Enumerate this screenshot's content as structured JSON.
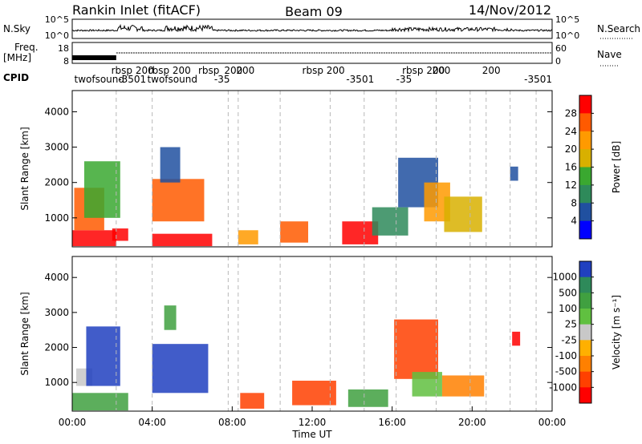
{
  "header": {
    "station": "Rankin Inlet (fitACF)",
    "beam": "Beam 09",
    "date": "14/Nov/2012"
  },
  "strip_labels": {
    "nsky": "N.Sky",
    "nsky_ticks": [
      "10^5",
      "10^0"
    ],
    "nsearch": "N.Search",
    "nsearch_ticks": [
      "10^5",
      "10^0"
    ],
    "freq_line1": "Freq.",
    "freq_line2": "[MHz]",
    "freq_ticks": [
      "18",
      "8"
    ],
    "nave": "Nave",
    "nave_ticks": [
      "60",
      "0"
    ],
    "cpid": "CPID"
  },
  "cpid_labels": [
    {
      "text": "twofsound",
      "t": 0.1,
      "row": 2
    },
    {
      "text": "rbsp 200",
      "t": 1.95,
      "row": 1
    },
    {
      "text": "-3501",
      "t": 2.3,
      "row": 2
    },
    {
      "text": "rbsp 200",
      "t": 3.8,
      "row": 1
    },
    {
      "text": "twofsound",
      "t": 3.75,
      "row": 2
    },
    {
      "text": "-35",
      "t": 7.1,
      "row": 2
    },
    {
      "text": "rbsp",
      "t": 6.3,
      "row": 1
    },
    {
      "text": "200",
      "t": 7.6,
      "row": 1
    },
    {
      "text": "200",
      "t": 8.2,
      "row": 1
    },
    {
      "text": "rbsp 200",
      "t": 11.5,
      "row": 1
    },
    {
      "text": "-3501",
      "t": 13.7,
      "row": 2
    },
    {
      "text": "rbsp 200",
      "t": 16.5,
      "row": 1
    },
    {
      "text": "-35",
      "t": 16.2,
      "row": 2
    },
    {
      "text": "200",
      "t": 18.0,
      "row": 1
    },
    {
      "text": "200",
      "t": 20.5,
      "row": 1
    },
    {
      "text": "-3501",
      "t": 22.6,
      "row": 2
    }
  ],
  "chart_data": [
    {
      "type": "heatmap",
      "name": "power",
      "ylabel": "Slant Range [km]",
      "xlabel": "",
      "xlim": [
        0,
        24
      ],
      "ylim": [
        180,
        4600
      ],
      "yticks": [
        1000,
        2000,
        3000,
        4000
      ],
      "colorbar": {
        "label": "Power [dB]",
        "ticks": [
          "28",
          "24",
          "20",
          "16",
          "12",
          "8",
          "4"
        ],
        "colors": [
          "#ff0000",
          "#ff5a00",
          "#ff9a00",
          "#d8b000",
          "#3aa830",
          "#2e8a5a",
          "#2050a0",
          "#0000ff"
        ]
      },
      "features": [
        {
          "t0": 0.0,
          "t1": 2.2,
          "r0": 200,
          "r1": 650,
          "c": 0
        },
        {
          "t0": 0.1,
          "t1": 1.6,
          "r0": 650,
          "r1": 1850,
          "c": 1
        },
        {
          "t0": 0.6,
          "t1": 2.4,
          "r0": 1000,
          "r1": 2600,
          "c": 4
        },
        {
          "t0": 2.0,
          "t1": 2.8,
          "r0": 350,
          "r1": 700,
          "c": 0
        },
        {
          "t0": 4.0,
          "t1": 7.0,
          "r0": 200,
          "r1": 550,
          "c": 0
        },
        {
          "t0": 4.0,
          "t1": 6.6,
          "r0": 900,
          "r1": 2100,
          "c": 1
        },
        {
          "t0": 4.4,
          "t1": 5.4,
          "r0": 2000,
          "r1": 3000,
          "c": 6
        },
        {
          "t0": 8.3,
          "t1": 9.3,
          "r0": 250,
          "r1": 650,
          "c": 2
        },
        {
          "t0": 10.4,
          "t1": 11.8,
          "r0": 300,
          "r1": 900,
          "c": 1
        },
        {
          "t0": 13.5,
          "t1": 15.3,
          "r0": 250,
          "r1": 900,
          "c": 0
        },
        {
          "t0": 15.0,
          "t1": 16.8,
          "r0": 500,
          "r1": 1300,
          "c": 5
        },
        {
          "t0": 16.3,
          "t1": 18.3,
          "r0": 1300,
          "r1": 2700,
          "c": 6
        },
        {
          "t0": 17.6,
          "t1": 18.9,
          "r0": 900,
          "r1": 2000,
          "c": 2
        },
        {
          "t0": 18.6,
          "t1": 20.5,
          "r0": 600,
          "r1": 1600,
          "c": 3
        },
        {
          "t0": 21.9,
          "t1": 22.3,
          "r0": 2050,
          "r1": 2450,
          "c": 6
        }
      ]
    },
    {
      "type": "heatmap",
      "name": "velocity",
      "ylabel": "Slant Range [km]",
      "xlabel": "Time UT",
      "xlim": [
        0,
        24
      ],
      "ylim": [
        180,
        4600
      ],
      "yticks": [
        1000,
        2000,
        3000,
        4000
      ],
      "xticks": [
        "00:00",
        "04:00",
        "08:00",
        "12:00",
        "16:00",
        "20:00",
        "00:00"
      ],
      "colorbar": {
        "label": "Velocity [m s⁻¹]",
        "ticks": [
          "1000",
          "500",
          "100",
          "25",
          "-25",
          "-100",
          "-500",
          "-1000"
        ],
        "colors": [
          "#2040c0",
          "#2e8a5a",
          "#40a040",
          "#60c040",
          "#c8c8c8",
          "#ffb000",
          "#ff8000",
          "#ff4000",
          "#ff0000"
        ]
      },
      "features": [
        {
          "t0": 0.0,
          "t1": 2.8,
          "r0": 200,
          "r1": 700,
          "c": 2
        },
        {
          "t0": 0.2,
          "t1": 1.0,
          "r0": 900,
          "r1": 1400,
          "c": 4
        },
        {
          "t0": 0.7,
          "t1": 2.4,
          "r0": 900,
          "r1": 2600,
          "c": 0
        },
        {
          "t0": 4.0,
          "t1": 6.8,
          "r0": 700,
          "r1": 2100,
          "c": 0
        },
        {
          "t0": 4.6,
          "t1": 5.2,
          "r0": 2500,
          "r1": 3200,
          "c": 2
        },
        {
          "t0": 8.4,
          "t1": 9.6,
          "r0": 250,
          "r1": 700,
          "c": 7
        },
        {
          "t0": 11.0,
          "t1": 13.2,
          "r0": 350,
          "r1": 1050,
          "c": 7
        },
        {
          "t0": 13.8,
          "t1": 15.8,
          "r0": 300,
          "r1": 800,
          "c": 2
        },
        {
          "t0": 16.1,
          "t1": 18.3,
          "r0": 1100,
          "r1": 2800,
          "c": 7
        },
        {
          "t0": 17.0,
          "t1": 18.5,
          "r0": 600,
          "r1": 1300,
          "c": 3
        },
        {
          "t0": 18.5,
          "t1": 20.6,
          "r0": 600,
          "r1": 1200,
          "c": 6
        },
        {
          "t0": 22.0,
          "t1": 22.4,
          "r0": 2050,
          "r1": 2450,
          "c": 8
        }
      ]
    }
  ]
}
